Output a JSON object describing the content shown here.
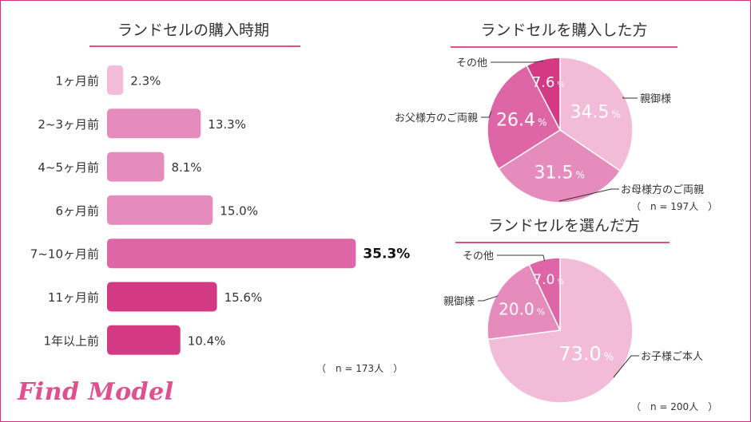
{
  "brand": "Find Model",
  "colors": {
    "frame": "#d6307e",
    "title_rule": "#e0508e",
    "bar_light": "#f2bcd9",
    "bar_mid": "#e68cbd",
    "bar_strong": "#df66a6",
    "bar_dark": "#d43a83",
    "pie_1": "#f2bcd9",
    "pie_2": "#e68cbd",
    "pie_3": "#df66a6",
    "pie_4": "#d43a83"
  },
  "chart_data": [
    {
      "type": "bar",
      "orientation": "horizontal",
      "title": "ランドセルの購入時期",
      "categories": [
        "1ヶ月前",
        "2~3ヶ月前",
        "4~5ヶ月前",
        "6ヶ月前",
        "7~10ヶ月前",
        "11ヶ月前",
        "1年以上前"
      ],
      "values": [
        2.3,
        13.3,
        8.1,
        15.0,
        35.3,
        15.6,
        10.4
      ],
      "value_labels": [
        "2.3%",
        "13.3%",
        "8.1%",
        "15.0%",
        "35.3%",
        "15.6%",
        "10.4%"
      ],
      "bar_colors": [
        "#f2bcd9",
        "#e68cbd",
        "#e68cbd",
        "#e68cbd",
        "#df66a6",
        "#d43a83",
        "#d43a83"
      ],
      "highlight_index": 4,
      "note": "（　n = 173人　）"
    },
    {
      "type": "pie",
      "title": "ランドセルを購入した方",
      "categories": [
        "親御様",
        "お母様方のご両親",
        "お父様方のご両親",
        "その他"
      ],
      "values": [
        34.5,
        31.5,
        26.4,
        7.6
      ],
      "value_numbers": [
        "34.5",
        "31.5",
        "26.4",
        "7.6"
      ],
      "percent_sign": "%",
      "colors": [
        "#f2bcd9",
        "#e68cbd",
        "#df66a6",
        "#d43a83"
      ],
      "note": "（　n = 197人　）"
    },
    {
      "type": "pie",
      "title": "ランドセルを選んだ方",
      "categories": [
        "お子様ご本人",
        "親御様",
        "その他"
      ],
      "values": [
        73.0,
        20.0,
        7.0
      ],
      "value_numbers": [
        "73.0",
        "20.0",
        "7.0"
      ],
      "percent_sign": "%",
      "colors": [
        "#f2bcd9",
        "#e68cbd",
        "#df66a6"
      ],
      "note": "（　n = 200人　）"
    }
  ]
}
